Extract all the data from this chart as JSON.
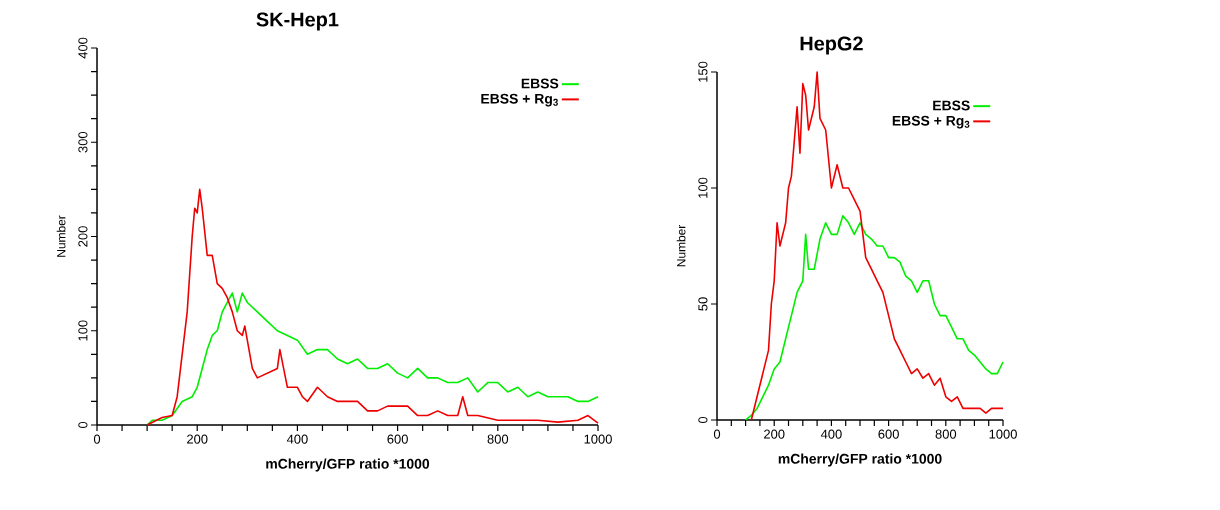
{
  "chart_data": [
    {
      "type": "line",
      "title": "SK-Hep1",
      "xlabel": "mCherry/GFP ratio *1000",
      "ylabel": "Number",
      "legend": "top right",
      "marker": "none",
      "xlim": [
        0,
        1000
      ],
      "ylim": [
        0,
        400
      ],
      "xticks": [
        0,
        {
          "value": 50,
          "label": null
        },
        {
          "value": 100,
          "label": null
        },
        {
          "value": 150,
          "label": null
        },
        200,
        {
          "value": 250,
          "label": null
        },
        {
          "value": 300,
          "label": null
        },
        {
          "value": 350,
          "label": null
        },
        400,
        {
          "value": 450,
          "label": null
        },
        {
          "value": 500,
          "label": null
        },
        {
          "value": 550,
          "label": null
        },
        600,
        {
          "value": 650,
          "label": null
        },
        {
          "value": 700,
          "label": null
        },
        {
          "value": 750,
          "label": null
        },
        800,
        {
          "value": 850,
          "label": null
        },
        {
          "value": 900,
          "label": null
        },
        {
          "value": 950,
          "label": null
        },
        1000
      ],
      "yticks": [
        0,
        {
          "value": 25,
          "label": null
        },
        {
          "value": 50,
          "label": null
        },
        {
          "value": 75,
          "label": null
        },
        100,
        {
          "value": 125,
          "label": null
        },
        {
          "value": 150,
          "label": null
        },
        {
          "value": 175,
          "label": null
        },
        200,
        {
          "value": 225,
          "label": null
        },
        {
          "value": 250,
          "label": null
        },
        {
          "value": 275,
          "label": null
        },
        300,
        {
          "value": 325,
          "label": null
        },
        {
          "value": 350,
          "label": null
        },
        {
          "value": 375,
          "label": null
        },
        400
      ],
      "series": [
        {
          "name": "EBSS",
          "color": "#00ee00",
          "x": [
            100,
            110,
            130,
            150,
            170,
            190,
            200,
            210,
            220,
            230,
            240,
            250,
            260,
            270,
            280,
            290,
            300,
            320,
            340,
            360,
            380,
            400,
            420,
            440,
            460,
            480,
            500,
            520,
            540,
            560,
            580,
            600,
            620,
            640,
            660,
            680,
            700,
            720,
            740,
            760,
            780,
            800,
            820,
            840,
            860,
            880,
            900,
            920,
            940,
            960,
            980,
            1000
          ],
          "values": [
            0,
            5,
            5,
            10,
            25,
            30,
            40,
            60,
            80,
            95,
            100,
            120,
            130,
            140,
            120,
            140,
            130,
            120,
            110,
            100,
            95,
            90,
            75,
            80,
            80,
            70,
            65,
            70,
            60,
            60,
            65,
            55,
            50,
            60,
            50,
            50,
            45,
            45,
            50,
            35,
            45,
            45,
            35,
            40,
            30,
            35,
            30,
            30,
            30,
            25,
            25,
            30
          ]
        },
        {
          "name": "EBSS + Rg$_{3}$",
          "color": "#ee0000",
          "x": [
            100,
            130,
            150,
            160,
            170,
            180,
            190,
            195,
            200,
            205,
            210,
            220,
            230,
            240,
            250,
            260,
            270,
            280,
            290,
            295,
            310,
            320,
            340,
            360,
            365,
            380,
            400,
            410,
            420,
            440,
            460,
            480,
            500,
            520,
            540,
            560,
            580,
            600,
            620,
            640,
            660,
            680,
            700,
            720,
            730,
            740,
            760,
            800,
            840,
            880,
            920,
            960,
            980,
            1000
          ],
          "values": [
            0,
            8,
            10,
            30,
            75,
            120,
            200,
            230,
            225,
            250,
            230,
            180,
            180,
            150,
            145,
            135,
            120,
            100,
            95,
            105,
            60,
            50,
            55,
            60,
            80,
            40,
            40,
            30,
            25,
            40,
            30,
            25,
            25,
            25,
            15,
            15,
            20,
            20,
            20,
            10,
            10,
            15,
            10,
            10,
            30,
            10,
            10,
            5,
            5,
            5,
            3,
            5,
            10,
            2
          ]
        }
      ]
    },
    {
      "type": "line",
      "title": "HepG2",
      "xlabel": "mCherry/GFP ratio *1000",
      "ylabel": "Number",
      "legend": "top right",
      "marker": "none",
      "xlim": [
        0,
        1000
      ],
      "ylim": [
        0,
        150
      ],
      "xticks": [
        0,
        {
          "value": 50,
          "label": null
        },
        {
          "value": 100,
          "label": null
        },
        {
          "value": 150,
          "label": null
        },
        200,
        {
          "value": 250,
          "label": null
        },
        {
          "value": 300,
          "label": null
        },
        {
          "value": 350,
          "label": null
        },
        400,
        {
          "value": 450,
          "label": null
        },
        {
          "value": 500,
          "label": null
        },
        {
          "value": 550,
          "label": null
        },
        600,
        {
          "value": 650,
          "label": null
        },
        {
          "value": 700,
          "label": null
        },
        {
          "value": 750,
          "label": null
        },
        800,
        {
          "value": 850,
          "label": null
        },
        {
          "value": 900,
          "label": null
        },
        {
          "value": 950,
          "label": null
        },
        1000
      ],
      "yticks": [
        0,
        50,
        100,
        150
      ],
      "series": [
        {
          "name": "EBSS",
          "color": "#00ee00",
          "x": [
            100,
            120,
            140,
            160,
            180,
            200,
            220,
            240,
            260,
            280,
            300,
            310,
            320,
            340,
            360,
            380,
            400,
            420,
            440,
            460,
            480,
            500,
            520,
            540,
            560,
            580,
            600,
            620,
            640,
            660,
            680,
            700,
            720,
            740,
            760,
            780,
            800,
            820,
            840,
            860,
            880,
            900,
            920,
            940,
            960,
            980,
            1000
          ],
          "values": [
            0,
            2,
            5,
            10,
            15,
            22,
            25,
            35,
            45,
            55,
            60,
            80,
            65,
            65,
            78,
            85,
            80,
            80,
            88,
            85,
            80,
            85,
            80,
            78,
            75,
            75,
            70,
            70,
            68,
            62,
            60,
            55,
            60,
            60,
            50,
            45,
            45,
            40,
            35,
            35,
            30,
            28,
            25,
            22,
            20,
            20,
            25
          ]
        },
        {
          "name": "EBSS + Rg$_{3}$",
          "color": "#ee0000",
          "x": [
            120,
            140,
            160,
            180,
            190,
            200,
            210,
            220,
            240,
            250,
            260,
            270,
            280,
            290,
            300,
            310,
            320,
            340,
            350,
            360,
            380,
            400,
            420,
            440,
            460,
            480,
            500,
            520,
            540,
            560,
            580,
            600,
            620,
            640,
            660,
            680,
            700,
            720,
            740,
            760,
            780,
            800,
            820,
            840,
            860,
            880,
            900,
            920,
            940,
            960,
            980,
            1000
          ],
          "values": [
            0,
            10,
            20,
            30,
            50,
            60,
            85,
            75,
            85,
            100,
            105,
            120,
            135,
            115,
            145,
            140,
            125,
            135,
            150,
            130,
            125,
            100,
            110,
            100,
            100,
            95,
            90,
            70,
            65,
            60,
            55,
            45,
            35,
            30,
            25,
            20,
            22,
            18,
            20,
            15,
            18,
            10,
            8,
            10,
            5,
            5,
            5,
            5,
            3,
            5,
            5,
            5
          ]
        }
      ]
    }
  ]
}
